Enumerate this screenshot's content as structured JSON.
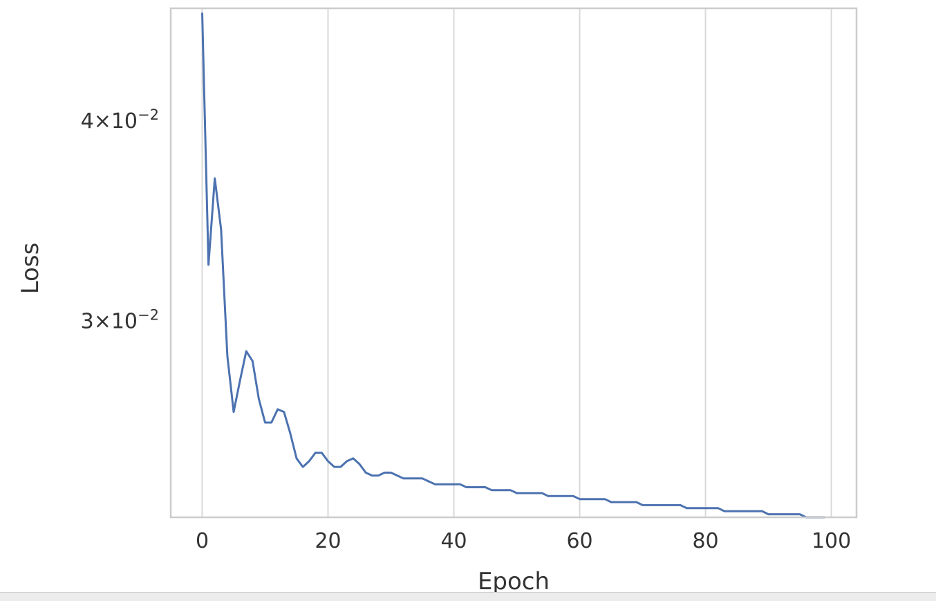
{
  "chart_data": {
    "type": "line",
    "xlabel": "Epoch",
    "ylabel": "Loss",
    "xlim": [
      -5,
      104
    ],
    "ylim": [
      0.0226,
      0.047
    ],
    "yscale": "log",
    "grid": "x-only",
    "x_ticks": [
      0,
      20,
      40,
      60,
      80,
      100
    ],
    "x_tick_labels": [
      "0",
      "20",
      "40",
      "60",
      "80",
      "100"
    ],
    "y_ticks": [
      {
        "value": 0.04,
        "base": "4",
        "exp": "−2"
      },
      {
        "value": 0.03,
        "base": "3",
        "exp": "−2"
      }
    ],
    "series": [
      {
        "color": "#4c72b0",
        "x": [
          0,
          1,
          2,
          3,
          4,
          5,
          6,
          7,
          8,
          9,
          10,
          11,
          12,
          13,
          14,
          15,
          16,
          17,
          18,
          19,
          20,
          21,
          22,
          23,
          24,
          25,
          26,
          27,
          28,
          29,
          30,
          31,
          32,
          33,
          34,
          35,
          36,
          37,
          38,
          39,
          40,
          41,
          42,
          43,
          44,
          45,
          46,
          47,
          48,
          49,
          50,
          51,
          52,
          53,
          54,
          55,
          56,
          57,
          58,
          59,
          60,
          61,
          62,
          63,
          64,
          65,
          66,
          67,
          68,
          69,
          70,
          71,
          72,
          73,
          74,
          75,
          76,
          77,
          78,
          79,
          80,
          81,
          82,
          83,
          84,
          85,
          86,
          87,
          88,
          89,
          90,
          91,
          92,
          93,
          94,
          95,
          96,
          97,
          98,
          99
        ],
        "y": [
          0.0467,
          0.0325,
          0.0368,
          0.0342,
          0.0285,
          0.0263,
          0.0275,
          0.0287,
          0.0283,
          0.0268,
          0.0259,
          0.0259,
          0.0264,
          0.0263,
          0.0255,
          0.0246,
          0.0243,
          0.0245,
          0.0248,
          0.0248,
          0.0245,
          0.0243,
          0.0243,
          0.0245,
          0.0246,
          0.0244,
          0.0241,
          0.024,
          0.024,
          0.0241,
          0.0241,
          0.024,
          0.0239,
          0.0239,
          0.0239,
          0.0239,
          0.0238,
          0.0237,
          0.0237,
          0.0237,
          0.0237,
          0.0237,
          0.0236,
          0.0236,
          0.0236,
          0.0236,
          0.0235,
          0.0235,
          0.0235,
          0.0235,
          0.0234,
          0.0234,
          0.0234,
          0.0234,
          0.0234,
          0.0233,
          0.0233,
          0.0233,
          0.0233,
          0.0233,
          0.0232,
          0.0232,
          0.0232,
          0.0232,
          0.0232,
          0.0231,
          0.0231,
          0.0231,
          0.0231,
          0.0231,
          0.023,
          0.023,
          0.023,
          0.023,
          0.023,
          0.023,
          0.023,
          0.0229,
          0.0229,
          0.0229,
          0.0229,
          0.0229,
          0.0229,
          0.0228,
          0.0228,
          0.0228,
          0.0228,
          0.0228,
          0.0228,
          0.0228,
          0.0227,
          0.0227,
          0.0227,
          0.0227,
          0.0227,
          0.0227,
          0.0226,
          0.0226,
          0.0226,
          0.0226
        ]
      }
    ]
  }
}
